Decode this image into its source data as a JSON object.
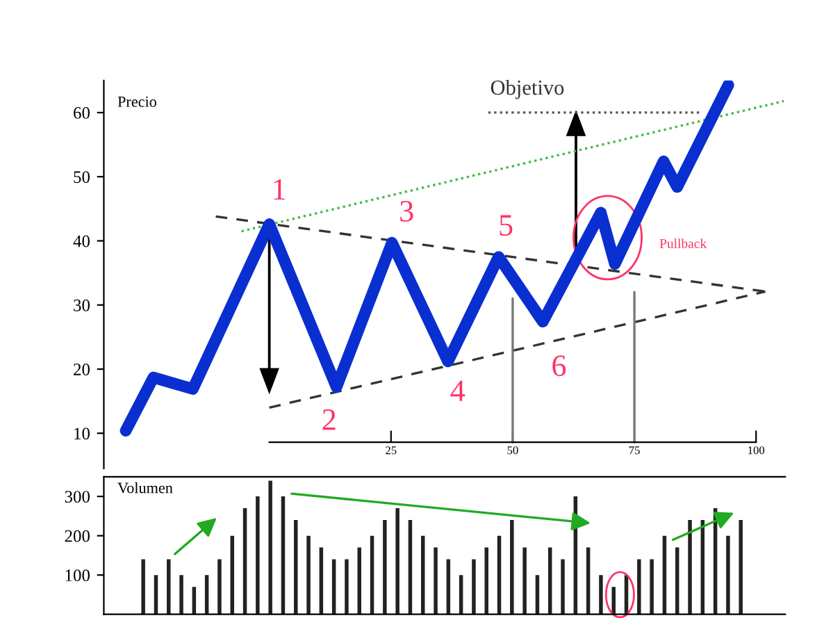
{
  "chart_data": [
    {
      "type": "line",
      "ylabel": "Precio",
      "xlim": [
        -34,
        106
      ],
      "ylim": [
        4.5,
        65
      ],
      "xticks": [
        25,
        50,
        75,
        100
      ],
      "yticks": [
        10,
        20,
        30,
        40,
        50,
        60
      ],
      "grid": false,
      "legend": false,
      "series": [
        {
          "color": "#0a2fd0",
          "x": [
            -29.5,
            -23.8,
            -15.7,
            0,
            13.8,
            25.2,
            36.7,
            47.1,
            56.2,
            68.1,
            71,
            81,
            83.8,
            94.3
          ],
          "values": [
            10.4,
            18.7,
            16.9,
            42.6,
            17.2,
            39.7,
            21.2,
            37.5,
            27.4,
            44.4,
            36.4,
            52.4,
            48.4,
            64.3
          ]
        },
        {
          "color": "#333333",
          "line_style": "dashed",
          "x": [
            -11,
            101.9
          ],
          "values": [
            43.8,
            32.1
          ]
        },
        {
          "color": "#333333",
          "line_style": "dashed",
          "x": [
            0,
            101.9
          ],
          "values": [
            14,
            32.1
          ]
        },
        {
          "color": "#44bb44",
          "line_style": "dotted",
          "x": [
            -5.7,
            105.7
          ],
          "values": [
            41.5,
            61.8
          ]
        },
        {
          "color": "#555555",
          "line_style": "dotted",
          "x": [
            45,
            89
          ],
          "values": [
            60,
            60
          ]
        },
        {
          "color": "#777777",
          "line_style": "solid",
          "x": [
            50,
            50
          ],
          "values": [
            8.6,
            31
          ]
        },
        {
          "color": "#777777",
          "line_style": "solid",
          "x": [
            75,
            75
          ],
          "values": [
            8.6,
            32
          ]
        }
      ],
      "annotations": [
        "1",
        "2",
        "3",
        "4",
        "5",
        "6",
        "Pullback",
        "Objetivo"
      ]
    },
    {
      "type": "bar",
      "ylabel": "Volumen",
      "ylim": [
        0,
        350
      ],
      "yticks": [
        100,
        200,
        300
      ],
      "color": "#222222",
      "grid": false,
      "categories": [
        null,
        null,
        null,
        null,
        null,
        null,
        null,
        null,
        null,
        null,
        null,
        null,
        null,
        null,
        null,
        null,
        null,
        null,
        null,
        null,
        null,
        null,
        null,
        null,
        null,
        null,
        null,
        null,
        null,
        null,
        null,
        null,
        null,
        null,
        null,
        null,
        null,
        null,
        null,
        null,
        null,
        null,
        null,
        null,
        null,
        null,
        null,
        null
      ],
      "values": [
        140,
        100,
        140,
        100,
        70,
        100,
        140,
        200,
        270,
        300,
        340,
        300,
        240,
        200,
        170,
        140,
        140,
        170,
        200,
        240,
        270,
        240,
        200,
        170,
        140,
        100,
        140,
        170,
        200,
        240,
        170,
        100,
        170,
        140,
        300,
        170,
        100,
        70,
        100,
        140,
        140,
        200,
        170,
        240,
        240,
        270,
        200,
        240
      ]
    }
  ]
}
